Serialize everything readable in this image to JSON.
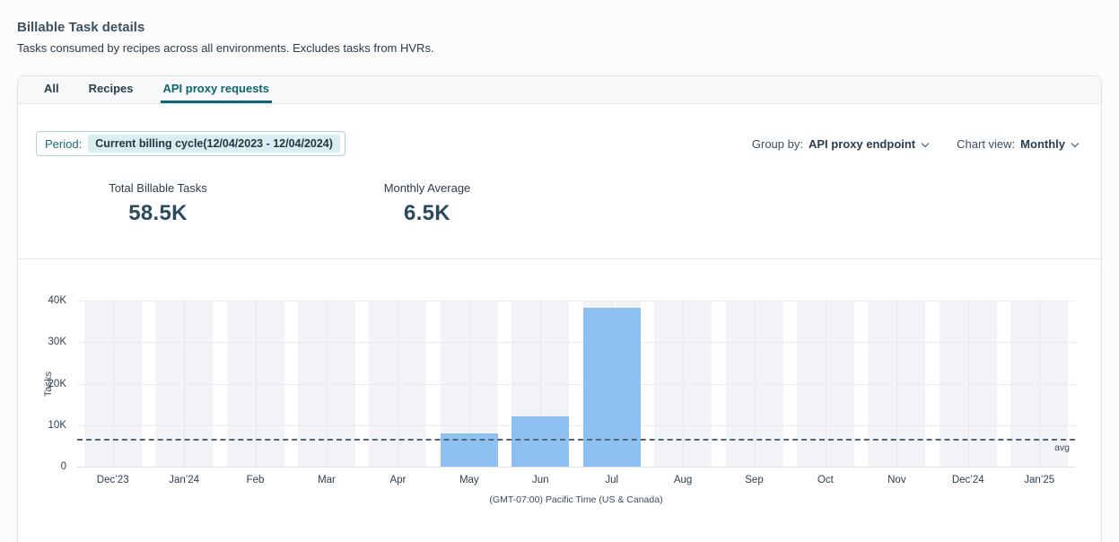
{
  "page": {
    "title": "Billable Task details",
    "subtitle": "Tasks consumed by recipes across all environments. Excludes tasks from HVRs."
  },
  "tabs": [
    {
      "label": "All",
      "active": false
    },
    {
      "label": "Recipes",
      "active": false
    },
    {
      "label": "API proxy requests",
      "active": true
    }
  ],
  "controls": {
    "period_label": "Period:",
    "period_value": "Current billing cycle(12/04/2023 - 12/04/2024)",
    "group_by_label": "Group by:",
    "group_by_value": "API proxy endpoint",
    "chart_view_label": "Chart view:",
    "chart_view_value": "Monthly"
  },
  "stats": [
    {
      "label": "Total Billable Tasks",
      "value": "58.5K"
    },
    {
      "label": "Monthly Average",
      "value": "6.5K"
    }
  ],
  "chart_data": {
    "type": "bar",
    "title": "",
    "categories": [
      "Dec’23",
      "Jan’24",
      "Feb",
      "Mar",
      "Apr",
      "May",
      "Jun",
      "Jul",
      "Aug",
      "Sep",
      "Oct",
      "Nov",
      "Dec’24",
      "Jan’25"
    ],
    "values": [
      0,
      0,
      0,
      0,
      0,
      8000,
      12200,
      38300,
      0,
      0,
      0,
      0,
      0,
      0
    ],
    "ylabel": "Tasks",
    "xlabel": "(GMT-07:00) Pacific Time (US & Canada)",
    "ylim": [
      0,
      40000
    ],
    "ytick_values": [
      0,
      10000,
      20000,
      30000,
      40000
    ],
    "ytick_labels": [
      "0",
      "10K",
      "20K",
      "30K",
      "40K"
    ],
    "avg_line": {
      "value": 6500,
      "label": "avg"
    },
    "grid": true,
    "legend_position": "none"
  },
  "colors": {
    "accent_teal": "#0f6570",
    "bar_blue": "#8ec1f1",
    "avg_line": "#52677a",
    "stat_value": "#2b4a5e",
    "period_pill_bg": "#d8eef1"
  }
}
